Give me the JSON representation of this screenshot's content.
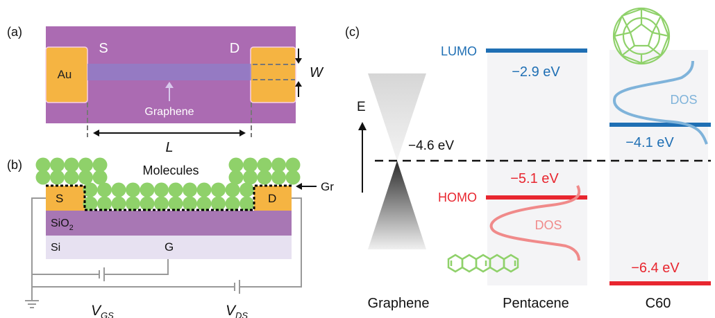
{
  "panel_a": {
    "label": "(a)",
    "source_label": "S",
    "drain_label": "D",
    "electrode_label": "Au",
    "width_label": "W",
    "length_label": "L",
    "graphene_label": "Graphene"
  },
  "panel_b": {
    "label": "(b)",
    "molecules_label": "Molecules",
    "gr_label": "Gr",
    "source_label": "S",
    "drain_label": "D",
    "oxide_label": "SiO",
    "oxide_subscript": "2",
    "substrate_label": "Si",
    "gate_label": "G",
    "vgs_main": "V",
    "vgs_sub": "GS",
    "vds_main": "V",
    "vds_sub": "DS"
  },
  "panel_c": {
    "label": "(c)",
    "axis_label": "E",
    "fermi_value": "−4.6 eV",
    "lumo_label": "LUMO",
    "homo_label": "HOMO",
    "pentacene_lumo": "−2.9 eV",
    "pentacene_homo": "−5.1 eV",
    "c60_lumo": "−4.1 eV",
    "c60_homo": "−6.4 eV",
    "dos_label": "DOS",
    "columns": [
      "Graphene",
      "Pentacene",
      "C60"
    ],
    "colors": {
      "lumo": "#1f6fb4",
      "homo": "#e8262f",
      "dos_lumo": "#7fb3da",
      "dos_homo": "#f08a8a",
      "molecule": "#8fd16a"
    }
  }
}
